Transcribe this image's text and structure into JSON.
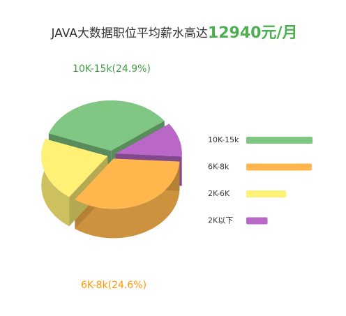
{
  "chart_data": {
    "type": "pie3d",
    "title": "JAVA大数据职位平均薪水高达",
    "title_highlight": "12940元/月",
    "categories": [
      "10K-15k",
      "2K以下",
      "6K-8k",
      "2K-6K"
    ],
    "values": [
      24.9,
      8,
      24.6,
      15
    ],
    "value_labels": [
      "10K-15k(24.9%)",
      null,
      "6K-8k(24.6%)",
      null
    ],
    "colors": [
      "#81c784",
      "#ba68c8",
      "#ffb74d",
      "#fff176"
    ],
    "legend_order": [
      0,
      2,
      3,
      1
    ]
  }
}
